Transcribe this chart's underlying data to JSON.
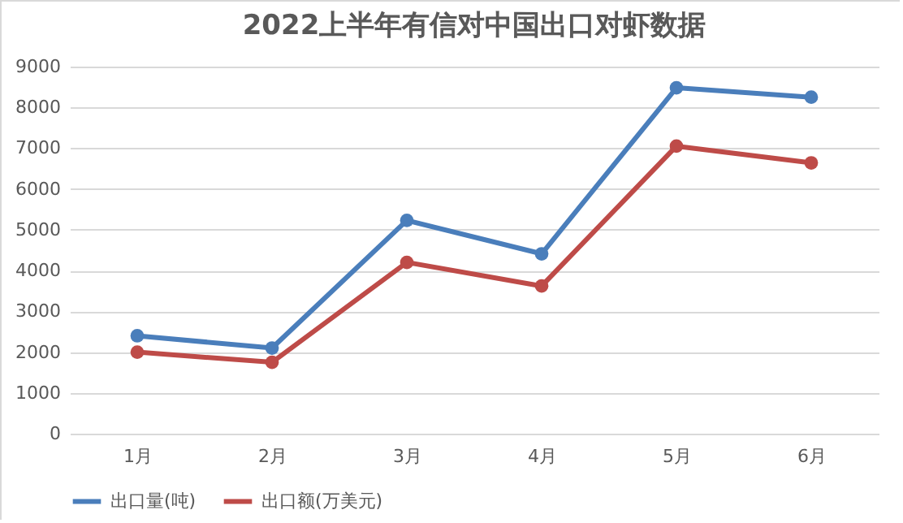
{
  "chart_data": {
    "type": "line",
    "title": "2022上半年有信对中国出口对虾数据",
    "categories": [
      "1月",
      "2月",
      "3月",
      "4月",
      "5月",
      "6月"
    ],
    "series": [
      {
        "name": "出口量(吨)",
        "color": "#4a7ebb",
        "values": [
          2400,
          2100,
          5230,
          4410,
          8480,
          8250
        ]
      },
      {
        "name": "出口额(万美元)",
        "color": "#be4b48",
        "values": [
          2000,
          1750,
          4200,
          3620,
          7050,
          6640
        ]
      }
    ],
    "ylim": [
      0,
      9000
    ],
    "yticks": [
      0,
      1000,
      2000,
      3000,
      4000,
      5000,
      6000,
      7000,
      8000,
      9000
    ],
    "grid": "y",
    "legend": "bottom",
    "marker": "circle",
    "line_style": "solid"
  }
}
